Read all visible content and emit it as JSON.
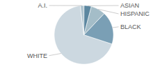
{
  "chart_data": {
    "type": "pie",
    "categories": [
      "WHITE",
      "BLACK",
      "HISPANIC",
      "ASIAN",
      "A.I."
    ],
    "values": [
      68,
      18,
      8,
      4,
      2
    ],
    "colors": [
      "#ccd8e0",
      "#7a9fb5",
      "#a4bdc8",
      "#5c87a0",
      "#b0c5d0"
    ]
  }
}
